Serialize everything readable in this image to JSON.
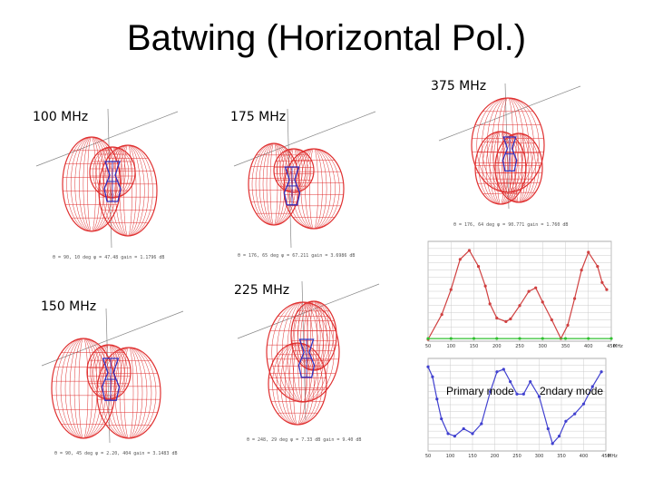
{
  "slide": {
    "title": "Batwing (Horizontal Pol.)"
  },
  "patterns": [
    {
      "id": "p100",
      "freq_label": "100 MHz",
      "caption": "θ = 90, 10 deg  φ = 47.48  gain = 1.1796 dB"
    },
    {
      "id": "p175",
      "freq_label": "175 MHz",
      "caption": "θ = 176, 65 deg  φ = 67.211  gain = 3.6986 dB"
    },
    {
      "id": "p375",
      "freq_label": "375 MHz",
      "caption": "θ = 176, 64 deg  φ = 90.771  gain = 1.760 dB"
    },
    {
      "id": "p150",
      "freq_label": "150 MHz",
      "caption": "θ = 90, 45 deg  φ = 2.20, 404  gain = 3.1483 dB"
    },
    {
      "id": "p225",
      "freq_label": "225 MHz",
      "caption": "θ = 248, 29 deg  φ = 7.33 dB  gain = 9.40 dB"
    }
  ],
  "colors": {
    "mesh": "#e03030",
    "element": "#3030c0",
    "axis": "#888888",
    "gain_line": "#d04040",
    "baseline": "#30c030",
    "mode_line": "#4040d0",
    "grid": "#cccccc"
  },
  "mode_labels": {
    "primary": "Primary mode",
    "secondary": "2ndary mode"
  },
  "chart_data": [
    {
      "type": "line",
      "title": "",
      "xlabel": "",
      "ylabel": "",
      "xlim": [
        50,
        450
      ],
      "x_ticks": [
        50,
        100,
        150,
        200,
        250,
        300,
        350,
        400,
        450
      ],
      "x_unit": "MHz",
      "series": [
        {
          "x": [
            50,
            80,
            100,
            120,
            140,
            160,
            175,
            185,
            200,
            220,
            230,
            250,
            270,
            285,
            300,
            320,
            340,
            355,
            370,
            385,
            400,
            420,
            430,
            440
          ],
          "values": [
            0.2,
            3.0,
            5.8,
            9.2,
            10.2,
            8.4,
            6.2,
            4.2,
            2.6,
            2.2,
            2.5,
            4.0,
            5.6,
            6.0,
            4.4,
            2.4,
            0.3,
            1.8,
            4.8,
            8.0,
            10.0,
            8.4,
            6.6,
            5.8
          ]
        },
        {
          "x": [
            50,
            100,
            150,
            200,
            250,
            300,
            350,
            400,
            450
          ],
          "values": [
            0.3,
            0.3,
            0.3,
            0.3,
            0.3,
            0.3,
            0.3,
            0.3,
            0.3
          ]
        }
      ]
    },
    {
      "type": "line",
      "title": "",
      "xlabel": "",
      "ylabel": "",
      "xlim": [
        50,
        450
      ],
      "x_ticks": [
        50,
        100,
        150,
        200,
        250,
        300,
        350,
        400,
        450
      ],
      "x_unit": "MHz",
      "series": [
        {
          "x": [
            50,
            60,
            70,
            80,
            95,
            110,
            130,
            150,
            170,
            190,
            205,
            220,
            235,
            250,
            265,
            280,
            300,
            320,
            330,
            345,
            360,
            380,
            400,
            420,
            440
          ],
          "values": [
            3.4,
            3.0,
            2.1,
            1.3,
            0.7,
            0.6,
            0.9,
            0.7,
            1.1,
            2.4,
            3.2,
            3.3,
            2.8,
            2.3,
            2.3,
            2.8,
            2.2,
            0.9,
            0.3,
            0.6,
            1.2,
            1.5,
            1.9,
            2.6,
            3.2
          ]
        }
      ]
    }
  ]
}
